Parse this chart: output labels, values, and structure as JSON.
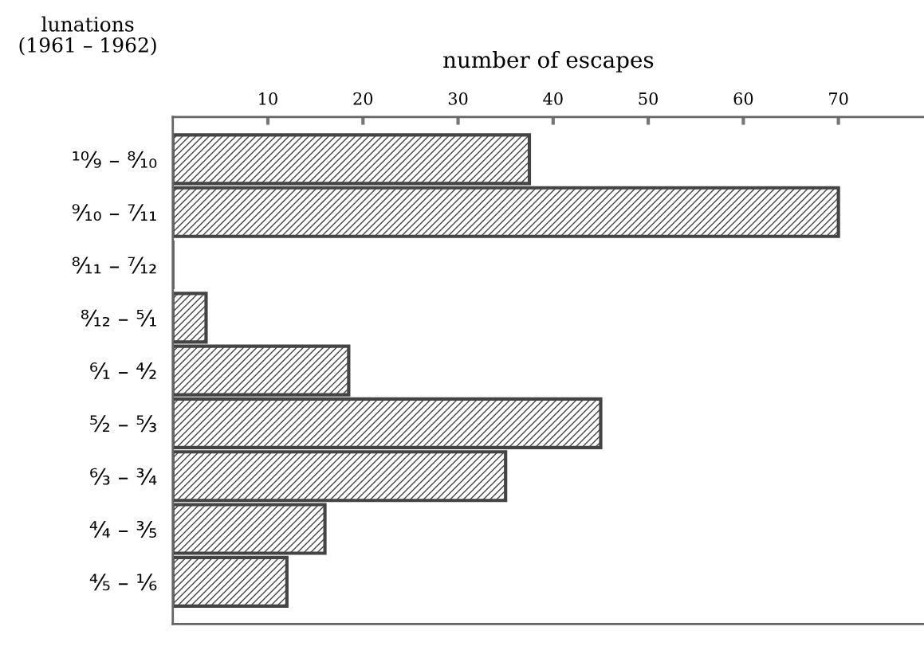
{
  "chart_data": {
    "type": "bar",
    "orientation": "horizontal",
    "xlabel": "number of escapes",
    "ylabel": "lunations\n(1961 – 1962)",
    "categories": [
      "¹⁰⁄₉ – ⁸⁄₁₀",
      "⁹⁄₁₀ – ⁷⁄₁₁",
      "⁸⁄₁₁ – ⁷⁄₁₂",
      "⁸⁄₁₂ – ⁵⁄₁",
      "⁶⁄₁ – ⁴⁄₂",
      "⁵⁄₂ – ⁵⁄₃",
      "⁶⁄₃ – ³⁄₄",
      "⁴⁄₄ – ³⁄₅",
      "⁴⁄₅ – ¹⁄₆"
    ],
    "values": [
      37.5,
      70,
      0,
      3.5,
      18.5,
      45,
      35,
      16,
      12
    ],
    "color": "#444444",
    "xlim": [
      0,
      79
    ],
    "xticks": [
      10,
      20,
      30,
      40,
      50,
      60,
      70
    ],
    "grid": false,
    "legend": false
  }
}
